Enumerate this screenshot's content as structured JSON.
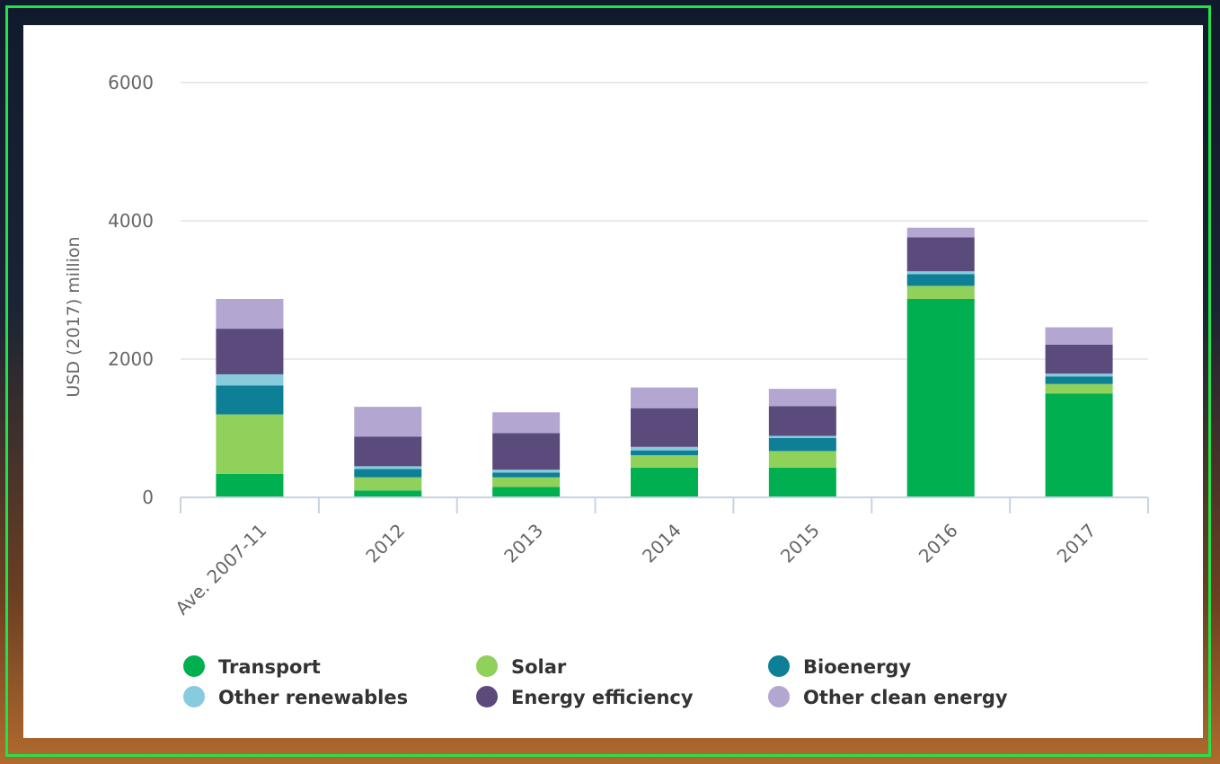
{
  "chart_data": {
    "type": "bar",
    "stacked": true,
    "ylabel": "USD (2017) million",
    "xlabel": "",
    "ylim": [
      0,
      6000
    ],
    "yticks": [
      0,
      2000,
      4000,
      6000
    ],
    "categories": [
      "Ave. 2007-11",
      "2012",
      "2013",
      "2014",
      "2015",
      "2016",
      "2017"
    ],
    "series": [
      {
        "name": "Transport",
        "color": "#00b050",
        "values": [
          340,
          100,
          150,
          430,
          430,
          2870,
          1500
        ]
      },
      {
        "name": "Solar",
        "color": "#8fd15a",
        "values": [
          860,
          190,
          140,
          180,
          240,
          190,
          140
        ]
      },
      {
        "name": "Bioenergy",
        "color": "#0d7f96",
        "values": [
          420,
          120,
          70,
          70,
          190,
          170,
          110
        ]
      },
      {
        "name": "Other renewables",
        "color": "#87ccdc",
        "values": [
          160,
          40,
          40,
          50,
          30,
          40,
          40
        ]
      },
      {
        "name": "Energy efficiency",
        "color": "#5b4a7c",
        "values": [
          660,
          430,
          530,
          560,
          430,
          490,
          420
        ]
      },
      {
        "name": "Other clean energy",
        "color": "#b3a6d1",
        "values": [
          430,
          430,
          300,
          300,
          250,
          140,
          250
        ]
      }
    ],
    "grid": true,
    "legend_position": "bottom"
  }
}
